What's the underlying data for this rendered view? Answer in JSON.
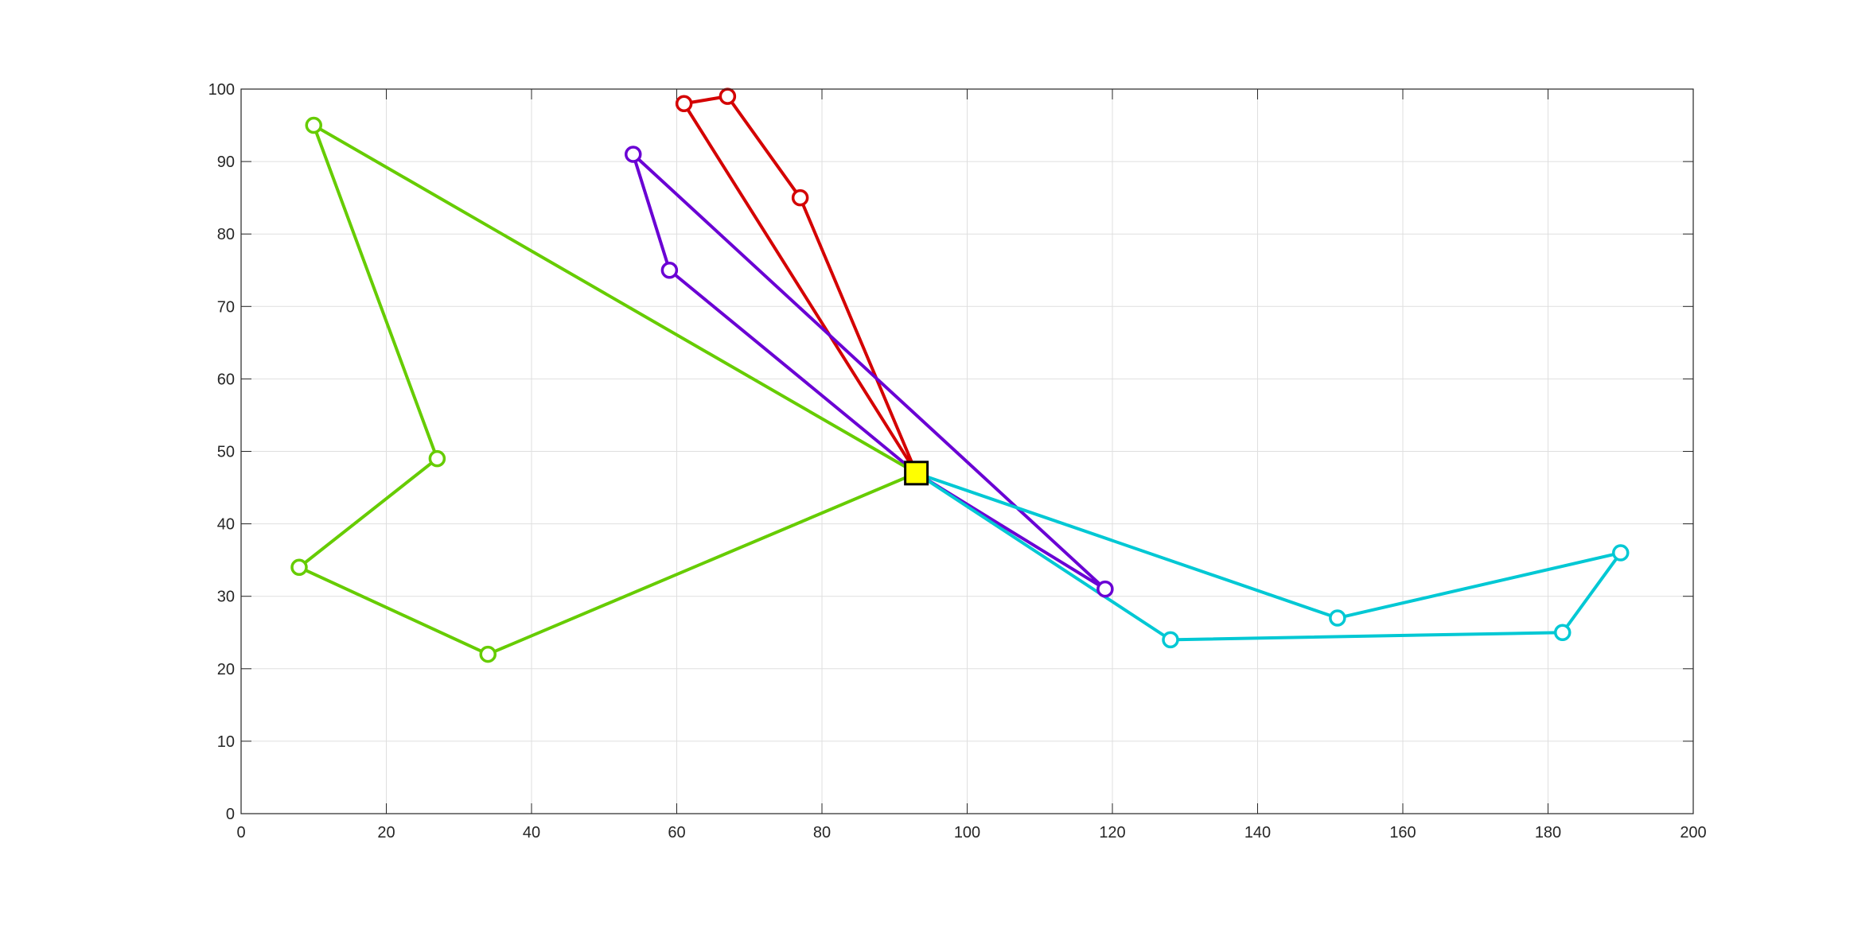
{
  "chart_data": {
    "type": "line",
    "title": "",
    "xlabel": "",
    "ylabel": "",
    "xlim": [
      0,
      200
    ],
    "ylim": [
      0,
      100
    ],
    "xticks": [
      0,
      20,
      40,
      60,
      80,
      100,
      120,
      140,
      160,
      180,
      200
    ],
    "yticks": [
      0,
      10,
      20,
      30,
      40,
      50,
      60,
      70,
      80,
      90,
      100
    ],
    "grid": true,
    "legend": "none",
    "depot": {
      "x": 93,
      "y": 47,
      "marker": "square",
      "color": "#ffff00"
    },
    "series": [
      {
        "color": "#d40000",
        "x": [
          93,
          61,
          67,
          77,
          93
        ],
        "y": [
          47,
          98,
          99,
          85,
          47
        ]
      },
      {
        "color": "#6a00d4",
        "x": [
          93,
          59,
          54,
          119,
          93
        ],
        "y": [
          47,
          75,
          91,
          31,
          47
        ]
      },
      {
        "color": "#66cc00",
        "x": [
          93,
          10,
          27,
          8,
          34,
          93
        ],
        "y": [
          47,
          95,
          49,
          34,
          22,
          47
        ]
      },
      {
        "color": "#00c8d4",
        "x": [
          93,
          151,
          190,
          182,
          128,
          93
        ],
        "y": [
          47,
          27,
          36,
          25,
          24,
          47
        ]
      }
    ]
  }
}
